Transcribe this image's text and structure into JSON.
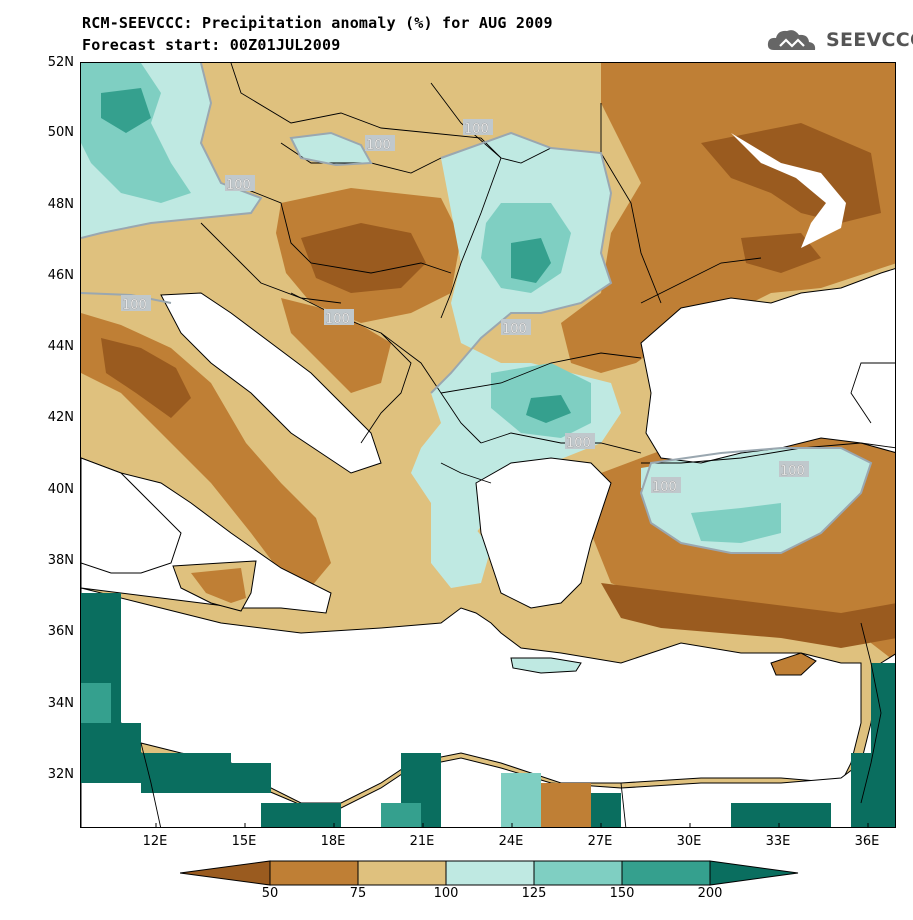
{
  "header": {
    "title_line1": "RCM-SEEVCCC: Precipitation anomaly (%) for AUG 2009",
    "title_line2": "Forecast start: 00Z01JUL2009",
    "logo_text": "SEEVCCC"
  },
  "map": {
    "lat_labels": [
      "52N",
      "50N",
      "48N",
      "46N",
      "44N",
      "42N",
      "40N",
      "38N",
      "36N",
      "34N",
      "32N"
    ],
    "lon_labels": [
      "12E",
      "15E",
      "18E",
      "21E",
      "24E",
      "27E",
      "30E",
      "33E",
      "36E"
    ],
    "contour_labels": [
      "100",
      "100",
      "100",
      "100",
      "100",
      "100",
      "100",
      "100",
      "100",
      "100"
    ],
    "colors": {
      "lt50": "#9a5b1f",
      "50_75": "#bf7f35",
      "75_100": "#dfc17e",
      "100_125": "#bfe9e2",
      "125_150": "#7fcfc2",
      "150_200": "#35a08e",
      "gt200": "#0a6e5f",
      "sea": "#ffffff"
    }
  },
  "colorbar": {
    "labels": [
      "50",
      "75",
      "100",
      "125",
      "150",
      "200"
    ],
    "colors": [
      "#9a5b1f",
      "#bf7f35",
      "#dfc17e",
      "#bfe9e2",
      "#7fcfc2",
      "#35a08e",
      "#0a6e5f"
    ]
  }
}
